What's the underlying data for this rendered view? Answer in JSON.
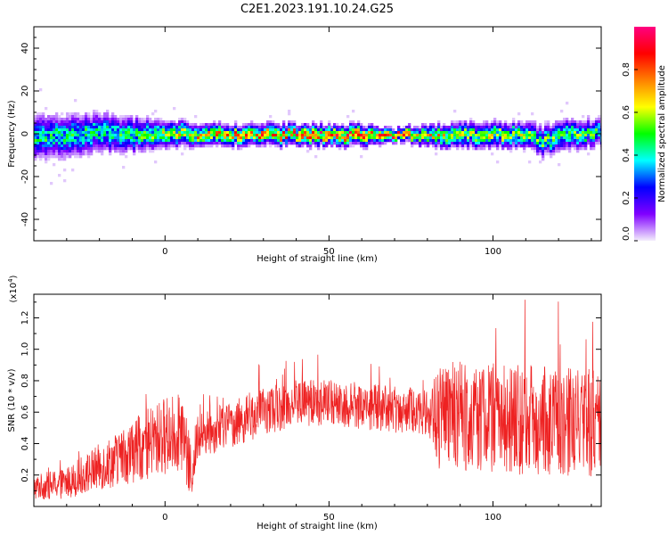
{
  "figure": {
    "title": "C2E1.2023.191.10.24.G25"
  },
  "chart_data": [
    {
      "type": "heatmap",
      "xlabel": "Height of straight line (km)",
      "ylabel": "Frequency (Hz)",
      "xlim": [
        -40,
        133
      ],
      "ylim": [
        -50,
        50
      ],
      "x_ticks": [
        0,
        50,
        100
      ],
      "y_ticks": [
        40,
        20,
        0,
        -20,
        -40
      ],
      "colorbar": {
        "label": "Normalized spectral amplitude",
        "range": [
          0.0,
          1.0
        ],
        "ticks": [
          0.0,
          0.2,
          0.4,
          0.6,
          0.8
        ],
        "colors": [
          "#f4eefc",
          "#8000ff",
          "#0000ff",
          "#00ffff",
          "#00ff00",
          "#ffff00",
          "#ff8000",
          "#ff0000",
          "#ff0080"
        ]
      },
      "ridge": {
        "x": [
          -40,
          -30,
          -20,
          -10,
          0,
          5,
          10,
          20,
          30,
          40,
          50,
          60,
          70,
          80,
          90,
          100,
          110,
          115,
          120,
          133
        ],
        "freq": [
          -1,
          0,
          1,
          0,
          0,
          1,
          0,
          0,
          0,
          0,
          0,
          0,
          0,
          0,
          0,
          0,
          0,
          -3,
          0,
          1
        ],
        "peak_amplitude": [
          0.45,
          0.45,
          0.45,
          0.5,
          0.6,
          0.65,
          0.7,
          0.75,
          0.75,
          0.8,
          0.8,
          0.8,
          0.85,
          0.7,
          0.6,
          0.6,
          0.55,
          0.5,
          0.55,
          0.5
        ],
        "spread_hz": [
          10,
          10,
          9,
          8,
          6,
          6,
          5,
          5,
          5,
          5,
          5,
          5,
          3,
          5,
          6,
          6,
          6,
          7,
          7,
          6
        ]
      }
    },
    {
      "type": "line",
      "xlabel": "Height of straight line (km)",
      "ylabel": "SNR (10 * v/v)",
      "y_multiplier_label": "(x10",
      "y_multiplier_exp": "4",
      "y_multiplier_close": ")",
      "xlim": [
        -40,
        133
      ],
      "ylim": [
        0,
        1.35
      ],
      "x_ticks": [
        0,
        50,
        100
      ],
      "y_ticks": [
        0.2,
        0.4,
        0.6,
        0.8,
        1.0,
        1.2
      ],
      "y_tick_labels": [
        "0.2",
        "0.4",
        "0.6",
        "0.8",
        "1.0",
        "1.2"
      ],
      "series": [
        {
          "color": "#ee2222",
          "envelope_x": [
            -40,
            -30,
            -20,
            -10,
            0,
            5,
            8,
            10,
            20,
            30,
            40,
            50,
            60,
            70,
            80,
            83,
            90,
            100,
            110,
            120,
            130,
            133
          ],
          "envelope_y": [
            0.12,
            0.15,
            0.25,
            0.35,
            0.45,
            0.48,
            0.2,
            0.45,
            0.52,
            0.6,
            0.66,
            0.66,
            0.64,
            0.62,
            0.6,
            0.55,
            0.58,
            0.56,
            0.55,
            0.55,
            0.53,
            0.5
          ],
          "noise": [
            0.08,
            0.1,
            0.15,
            0.2,
            0.25,
            0.25,
            0.2,
            0.15,
            0.15,
            0.15,
            0.15,
            0.15,
            0.15,
            0.15,
            0.15,
            0.35,
            0.35,
            0.35,
            0.35,
            0.35,
            0.35,
            0.35
          ],
          "y_max": 1.35
        }
      ]
    }
  ]
}
